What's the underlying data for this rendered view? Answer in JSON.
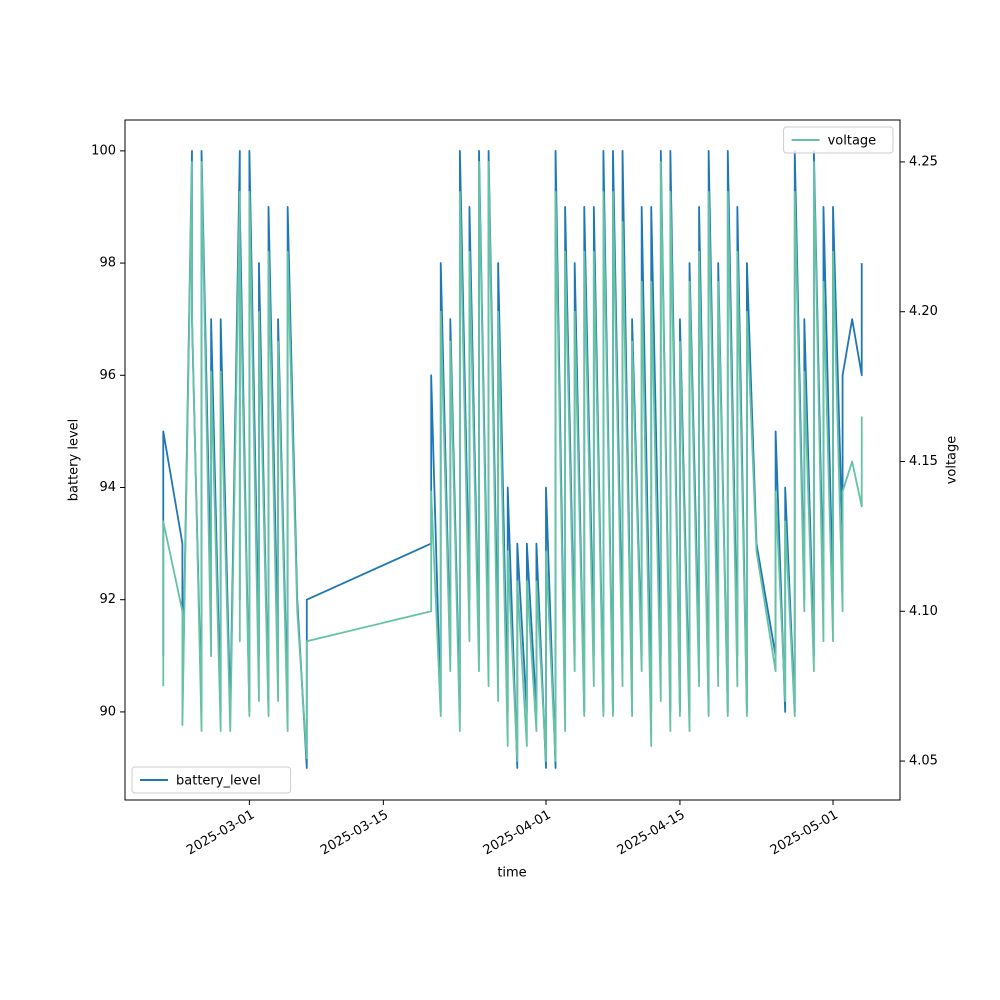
{
  "chart_data": {
    "type": "line",
    "xlabel": "time",
    "ylabel": "battery level",
    "y2label": "voltage",
    "x": [
      "2025-02-20",
      "2025-02-20",
      "2025-02-21",
      "2025-02-22",
      "2025-02-22",
      "2025-02-23",
      "2025-02-23",
      "2025-02-24",
      "2025-02-24",
      "2025-02-25",
      "2025-02-25",
      "2025-02-26",
      "2025-02-26",
      "2025-02-27",
      "2025-02-28",
      "2025-02-28",
      "2025-02-28",
      "2025-03-01",
      "2025-03-01",
      "2025-03-02",
      "2025-03-02",
      "2025-03-03",
      "2025-03-03",
      "2025-03-04",
      "2025-03-04",
      "2025-03-05",
      "2025-03-05",
      "2025-03-06",
      "2025-03-07",
      "2025-03-07",
      "2025-03-20",
      "2025-03-20",
      "2025-03-21",
      "2025-03-21",
      "2025-03-22",
      "2025-03-22",
      "2025-03-23",
      "2025-03-23",
      "2025-03-24",
      "2025-03-24",
      "2025-03-25",
      "2025-03-25",
      "2025-03-26",
      "2025-03-26",
      "2025-03-27",
      "2025-03-27",
      "2025-03-28",
      "2025-03-28",
      "2025-03-29",
      "2025-03-29",
      "2025-03-30",
      "2025-03-30",
      "2025-03-31",
      "2025-03-31",
      "2025-04-01",
      "2025-04-01",
      "2025-04-02",
      "2025-04-02",
      "2025-04-03",
      "2025-04-03",
      "2025-04-04",
      "2025-04-04",
      "2025-04-05",
      "2025-04-05",
      "2025-04-06",
      "2025-04-06",
      "2025-04-07",
      "2025-04-07",
      "2025-04-08",
      "2025-04-08",
      "2025-04-09",
      "2025-04-09",
      "2025-04-10",
      "2025-04-10",
      "2025-04-11",
      "2025-04-11",
      "2025-04-12",
      "2025-04-12",
      "2025-04-13",
      "2025-04-13",
      "2025-04-14",
      "2025-04-14",
      "2025-04-15",
      "2025-04-15",
      "2025-04-16",
      "2025-04-16",
      "2025-04-17",
      "2025-04-17",
      "2025-04-18",
      "2025-04-18",
      "2025-04-19",
      "2025-04-19",
      "2025-04-20",
      "2025-04-20",
      "2025-04-21",
      "2025-04-21",
      "2025-04-22",
      "2025-04-22",
      "2025-04-23",
      "2025-04-25",
      "2025-04-25",
      "2025-04-26",
      "2025-04-26",
      "2025-04-27",
      "2025-04-27",
      "2025-04-28",
      "2025-04-28",
      "2025-04-29",
      "2025-04-29",
      "2025-04-30",
      "2025-04-30",
      "2025-05-01",
      "2025-05-01",
      "2025-05-02",
      "2025-05-02",
      "2025-05-03",
      "2025-05-04",
      "2025-05-04"
    ],
    "series": [
      {
        "name": "battery_level",
        "color": "#1f77b4",
        "axis": "y",
        "legend": "lower left",
        "values": [
          91,
          95,
          94,
          93,
          90,
          100,
          97,
          90,
          100,
          92,
          97,
          90,
          97,
          90,
          100,
          92,
          99,
          90,
          100,
          91,
          98,
          90,
          99,
          91,
          97,
          90,
          99,
          92,
          89,
          92,
          93,
          96,
          90,
          98,
          91,
          97,
          90,
          100,
          92,
          99,
          91,
          100,
          91,
          100,
          91,
          98,
          90,
          94,
          89,
          93,
          90,
          93,
          90,
          93,
          89,
          94,
          89,
          100,
          90,
          99,
          91,
          98,
          90,
          99,
          91,
          99,
          90,
          100,
          90,
          100,
          91,
          100,
          90,
          97,
          91,
          99,
          90,
          99,
          91,
          100,
          90,
          100,
          90,
          97,
          90,
          98,
          91,
          99,
          90,
          100,
          91,
          98,
          90,
          100,
          91,
          99,
          90,
          98,
          93,
          91,
          95,
          90,
          94,
          90,
          100,
          92,
          97,
          91,
          100,
          92,
          99,
          92,
          99,
          93,
          96,
          97,
          96,
          98
        ]
      },
      {
        "name": "voltage",
        "color": "#66c2a5",
        "axis": "y2",
        "legend": "upper right",
        "values": [
          4.075,
          4.13,
          4.115,
          4.1,
          4.062,
          4.25,
          4.2,
          4.06,
          4.25,
          4.085,
          4.18,
          4.06,
          4.18,
          4.06,
          4.24,
          4.09,
          4.22,
          4.065,
          4.24,
          4.07,
          4.2,
          4.065,
          4.22,
          4.07,
          4.19,
          4.06,
          4.22,
          4.1,
          4.051,
          4.09,
          4.1,
          4.14,
          4.065,
          4.2,
          4.08,
          4.19,
          4.06,
          4.24,
          4.09,
          4.22,
          4.08,
          4.25,
          4.075,
          4.25,
          4.07,
          4.2,
          4.055,
          4.12,
          4.05,
          4.11,
          4.055,
          4.11,
          4.06,
          4.11,
          4.05,
          4.12,
          4.05,
          4.24,
          4.06,
          4.22,
          4.08,
          4.2,
          4.065,
          4.22,
          4.075,
          4.22,
          4.065,
          4.24,
          4.065,
          4.24,
          4.075,
          4.23,
          4.065,
          4.19,
          4.08,
          4.21,
          4.055,
          4.21,
          4.07,
          4.25,
          4.06,
          4.24,
          4.065,
          4.19,
          4.06,
          4.21,
          4.075,
          4.22,
          4.065,
          4.24,
          4.075,
          4.21,
          4.065,
          4.24,
          4.075,
          4.22,
          4.065,
          4.2,
          4.12,
          4.08,
          4.14,
          4.07,
          4.13,
          4.065,
          4.24,
          4.1,
          4.18,
          4.08,
          4.25,
          4.09,
          4.21,
          4.09,
          4.22,
          4.1,
          4.14,
          4.15,
          4.135,
          4.165
        ]
      }
    ],
    "xlim": [
      "2025-02-16",
      "2025-05-08"
    ],
    "xticks": [
      "2025-03-01",
      "2025-03-15",
      "2025-04-01",
      "2025-04-15",
      "2025-05-01"
    ],
    "ylim": [
      88.43,
      100.55
    ],
    "yticks": [
      90,
      92,
      94,
      96,
      98,
      100
    ],
    "y2lim": [
      4.037,
      4.264
    ],
    "y2ticks": [
      4.05,
      {
        "value": 4.1,
        "label": "4.10"
      },
      4.15,
      {
        "value": 4.2,
        "label": "4.20"
      },
      4.25
    ],
    "grid": false
  }
}
